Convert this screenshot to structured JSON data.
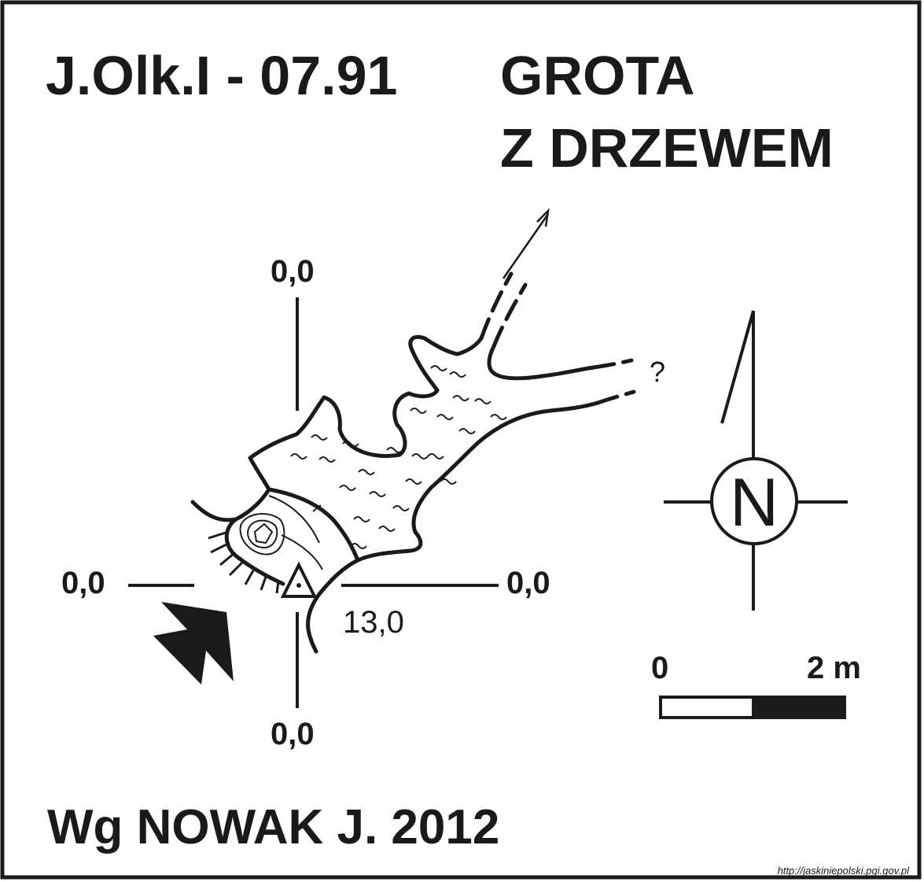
{
  "header": {
    "cave_id": "J.Olk.I - 07.91",
    "cave_name_line1": "GROTA",
    "cave_name_line2": "Z DRZEWEM"
  },
  "plan": {
    "axis_labels": {
      "top": "0,0",
      "left": "0,0",
      "right": "0,0",
      "bottom": "0,0"
    },
    "station_depth": "13,0",
    "unknown_marker": "?",
    "icons": [
      "entrance-arrow-icon",
      "survey-station-triangle-icon",
      "stalagmite-icon",
      "continuation-arrow-icon",
      "north-compass-icon"
    ],
    "colors": {
      "ink": "#1a1a1a",
      "background": "#ffffff"
    }
  },
  "compass": {
    "label": "N"
  },
  "scale_bar": {
    "start_label": "0",
    "end_label": "2 m"
  },
  "footer": {
    "source": "Wg NOWAK J. 2012",
    "url": "http://jaskiniepolski.pgi.gov.pl"
  }
}
